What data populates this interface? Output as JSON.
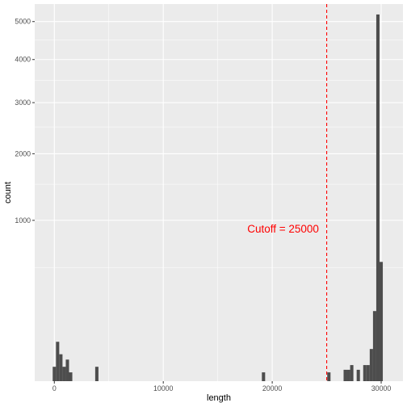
{
  "chart_data": {
    "type": "bar",
    "title": "",
    "xlabel": "length",
    "ylabel": "count",
    "y_scale": "sqrt",
    "xlim": [
      -1800,
      32000
    ],
    "ylim": [
      0,
      5500
    ],
    "grid": true,
    "x_ticks": [
      0,
      10000,
      20000,
      30000
    ],
    "y_ticks": [
      1000,
      2000,
      3000,
      4000,
      5000
    ],
    "bin_width": 300,
    "bars": [
      {
        "x": 0,
        "count": 8
      },
      {
        "x": 300,
        "count": 60
      },
      {
        "x": 600,
        "count": 28
      },
      {
        "x": 900,
        "count": 8
      },
      {
        "x": 1200,
        "count": 18
      },
      {
        "x": 1500,
        "count": 3
      },
      {
        "x": 3900,
        "count": 8
      },
      {
        "x": 19200,
        "count": 3
      },
      {
        "x": 25200,
        "count": 3
      },
      {
        "x": 26700,
        "count": 5
      },
      {
        "x": 27000,
        "count": 5
      },
      {
        "x": 27300,
        "count": 10
      },
      {
        "x": 27900,
        "count": 5
      },
      {
        "x": 28500,
        "count": 10
      },
      {
        "x": 28800,
        "count": 10
      },
      {
        "x": 29100,
        "count": 40
      },
      {
        "x": 29400,
        "count": 190
      },
      {
        "x": 29700,
        "count": 5200
      },
      {
        "x": 30000,
        "count": 550
      }
    ],
    "cutoff": {
      "value": 25000,
      "label": "Cutoff = 25000",
      "label_x": 21000,
      "label_y": 900,
      "color": "#ff0000"
    },
    "colors": {
      "panel": "#ebebeb",
      "grid": "#ffffff",
      "bar": "#4d4d4d",
      "text": "#4d4d4d"
    }
  }
}
